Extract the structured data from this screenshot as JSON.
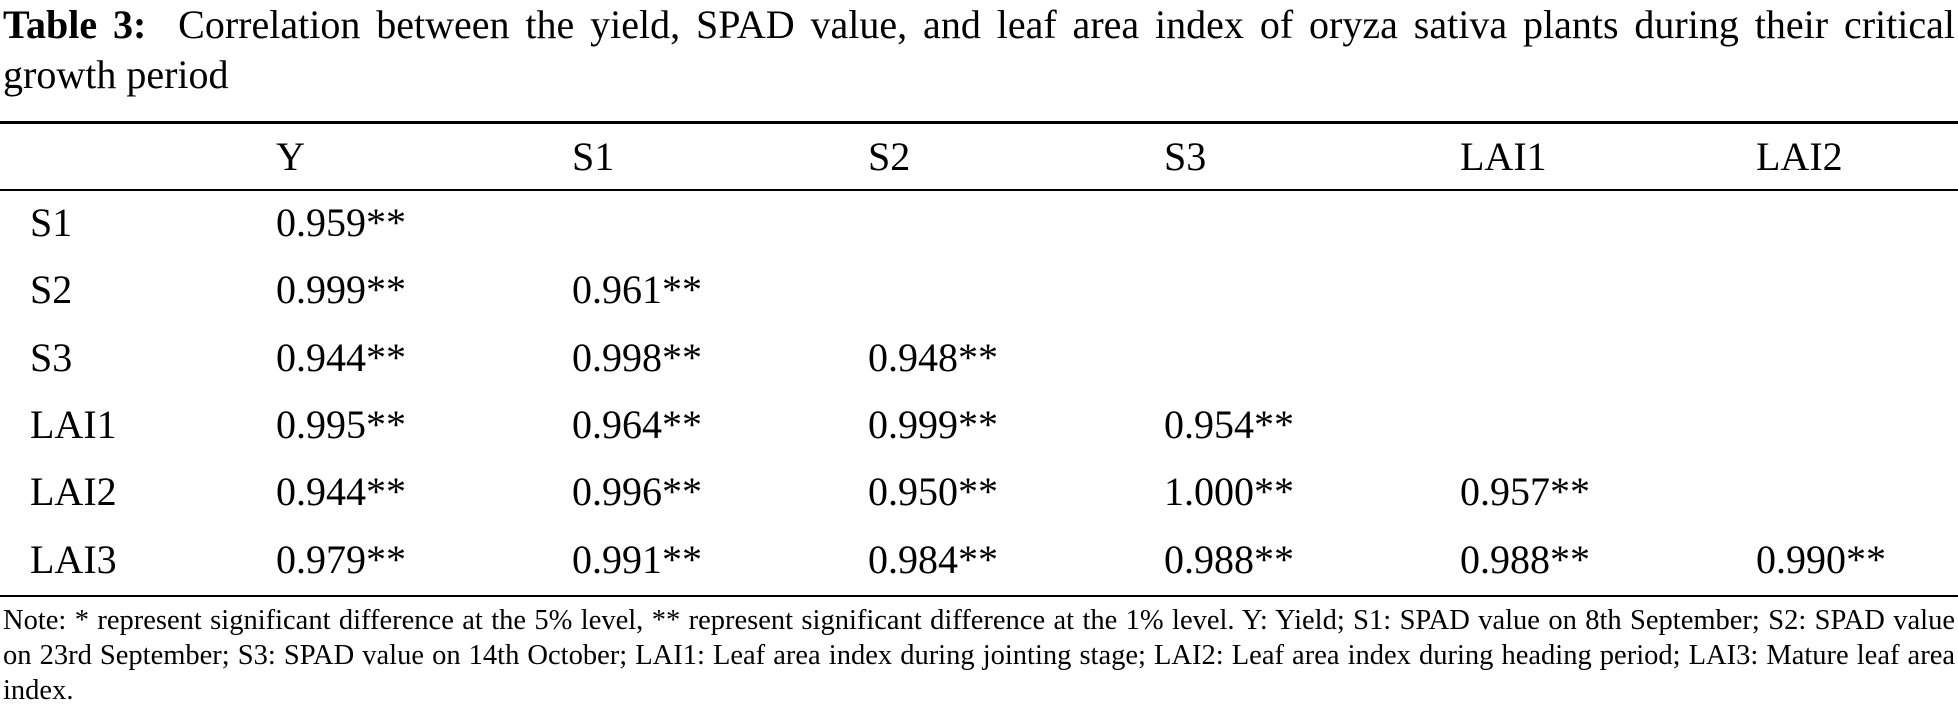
{
  "caption": {
    "label": "Table 3:",
    "text": "Correlation between the yield, SPAD value, and leaf area index of oryza sativa plants during their critical growth period"
  },
  "table": {
    "headers": [
      "",
      "Y",
      "S1",
      "S2",
      "S3",
      "LAI1",
      "LAI2"
    ],
    "rows": [
      {
        "label": "S1",
        "cells": [
          "0.959**",
          "",
          "",
          "",
          "",
          ""
        ]
      },
      {
        "label": "S2",
        "cells": [
          "0.999**",
          "0.961**",
          "",
          "",
          "",
          ""
        ]
      },
      {
        "label": "S3",
        "cells": [
          "0.944**",
          "0.998**",
          "0.948**",
          "",
          "",
          ""
        ]
      },
      {
        "label": "LAI1",
        "cells": [
          "0.995**",
          "0.964**",
          "0.999**",
          "0.954**",
          "",
          ""
        ]
      },
      {
        "label": "LAI2",
        "cells": [
          "0.944**",
          "0.996**",
          "0.950**",
          "1.000**",
          "0.957**",
          ""
        ]
      },
      {
        "label": "LAI3",
        "cells": [
          "0.979**",
          "0.991**",
          "0.984**",
          "0.988**",
          "0.988**",
          "0.990**"
        ]
      }
    ]
  },
  "note": "Note: * represent significant difference at the 5% level, ** represent significant difference at the 1% level. Y: Yield; S1: SPAD value on 8th September; S2: SPAD value on 23rd September; S3: SPAD value on 14th October; LAI1: Leaf area index during jointing stage; LAI2: Leaf area index during heading period; LAI3: Mature leaf area index."
}
